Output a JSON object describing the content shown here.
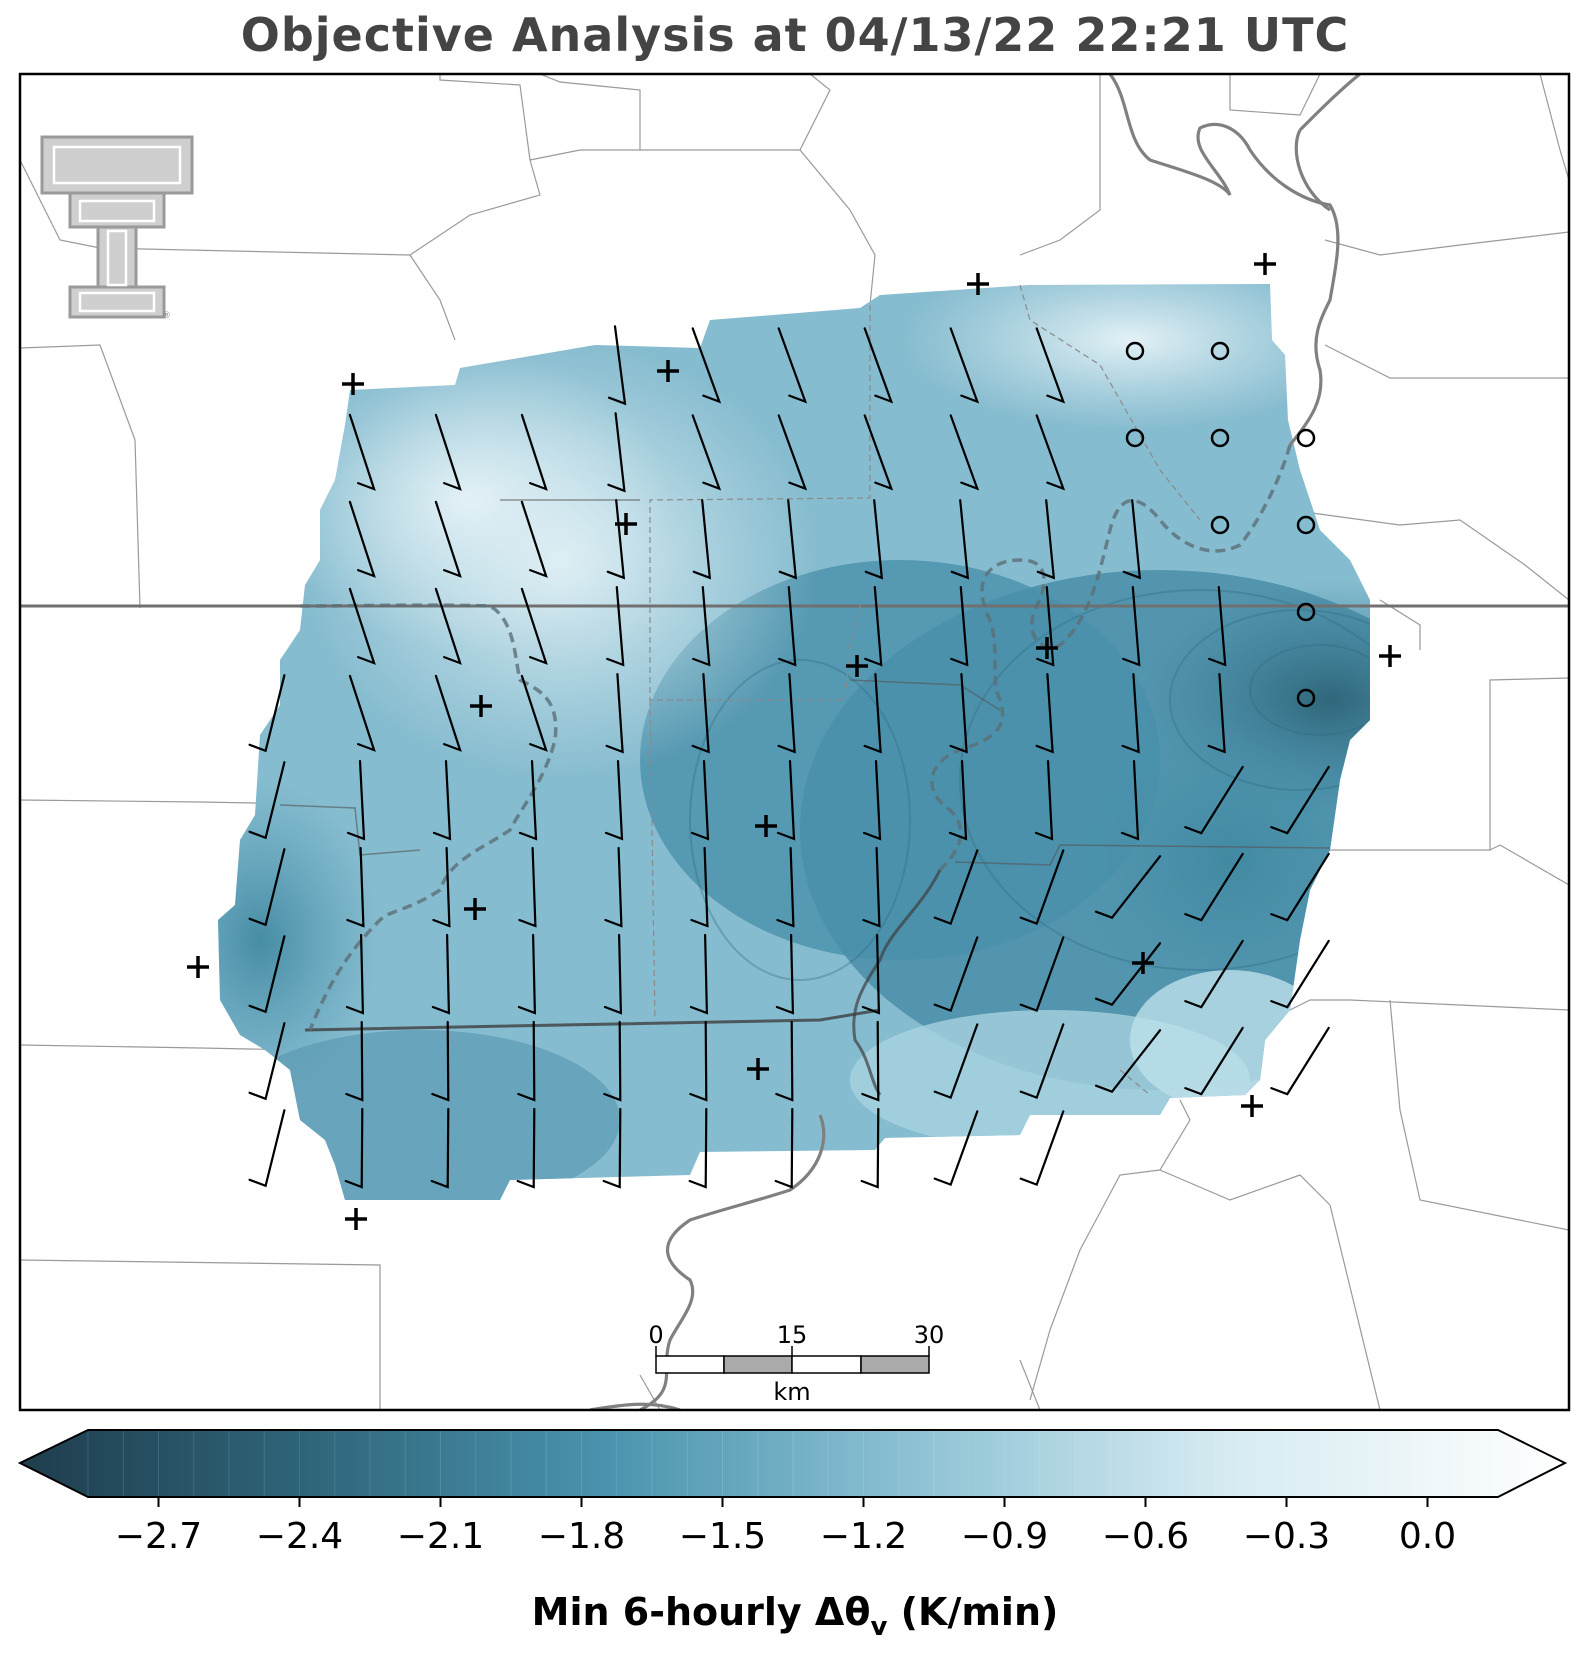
{
  "title": "Objective Analysis at 04/13/22 22:21 UTC",
  "colorbar": {
    "label": "Min 6-hourly Δθ",
    "label_sub": "v",
    "label_units": " (K/min)",
    "min": -2.85,
    "max": 0.15,
    "ticks": [
      "−2.7",
      "−2.4",
      "−2.1",
      "−1.8",
      "−1.5",
      "−1.2",
      "−0.9",
      "−0.6",
      "−0.3",
      "0.0"
    ],
    "tick_values": [
      -2.7,
      -2.4,
      -2.1,
      -1.8,
      -1.5,
      -1.2,
      -0.9,
      -0.6,
      -0.3,
      0.0
    ],
    "colors": [
      "#1f3d4d",
      "#2e6478",
      "#4a93ae",
      "#8ec2d4",
      "#d6ebf2",
      "#ffffff"
    ]
  },
  "scalebar": {
    "labels": [
      "0",
      "15",
      "30"
    ],
    "unit": "km"
  },
  "logo": {
    "icon": "texas-tech-double-t-logo"
  }
}
